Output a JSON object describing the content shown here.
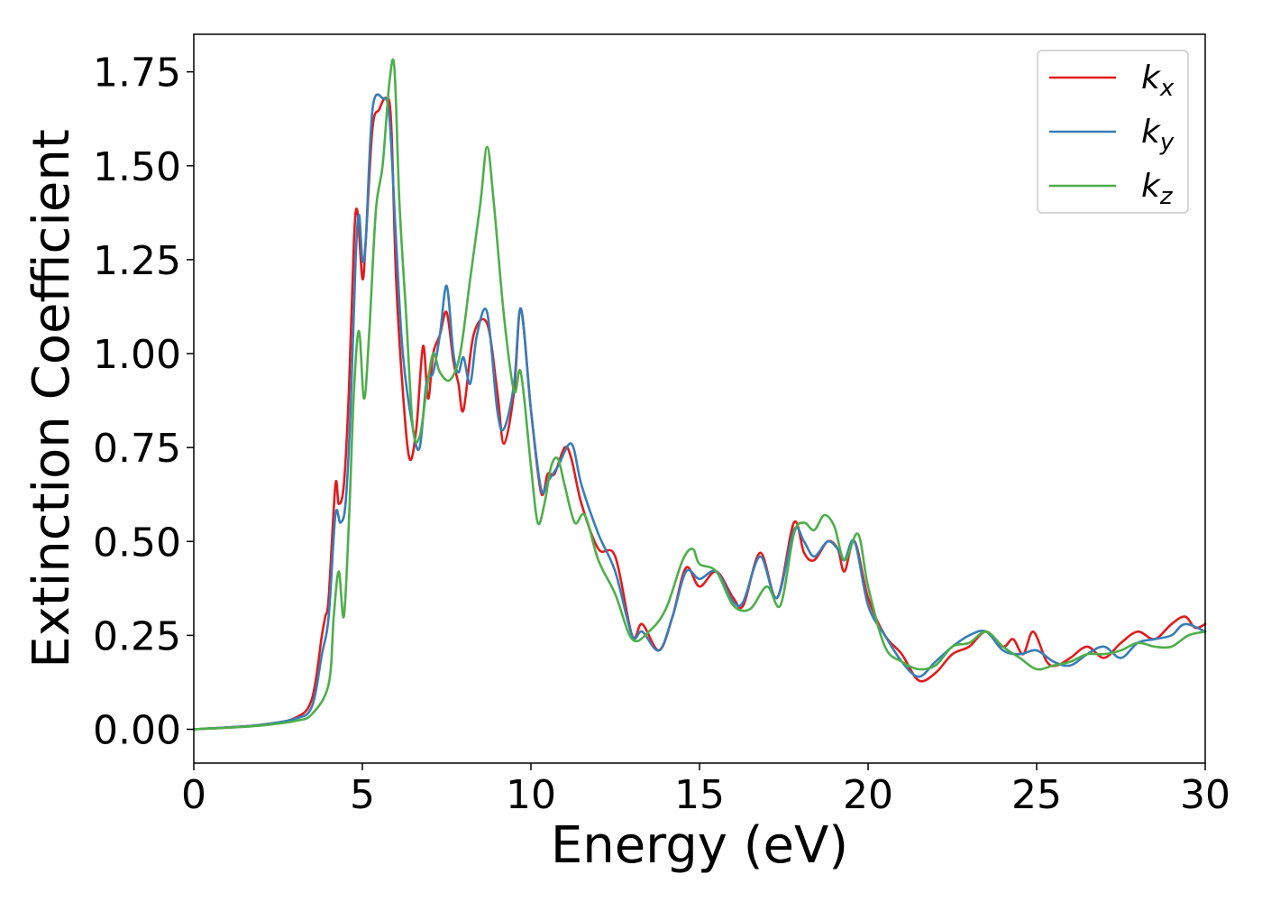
{
  "chart_data": {
    "type": "line",
    "title": "",
    "xlabel": "Energy (eV)",
    "ylabel": "Extinction Coefficient",
    "xlim": [
      0,
      30
    ],
    "ylim": [
      -0.09,
      1.85
    ],
    "xticks": [
      0,
      5,
      10,
      15,
      20,
      25,
      30
    ],
    "xtick_labels": [
      "0",
      "5",
      "10",
      "15",
      "20",
      "25",
      "30"
    ],
    "yticks": [
      0.0,
      0.25,
      0.5,
      0.75,
      1.0,
      1.25,
      1.5,
      1.75
    ],
    "ytick_labels": [
      "0.00",
      "0.25",
      "0.50",
      "0.75",
      "1.00",
      "1.25",
      "1.50",
      "1.75"
    ],
    "grid": false,
    "legend_position": "top-right",
    "series": [
      {
        "name": "k_x",
        "label_main": "k",
        "label_sub": "x",
        "color": "#e41a1c",
        "x": [
          0,
          1,
          2,
          3,
          3.5,
          3.8,
          3.9,
          4.0,
          4.2,
          4.3,
          4.45,
          4.6,
          4.75,
          4.85,
          5.0,
          5.1,
          5.3,
          5.5,
          5.7,
          5.85,
          6.0,
          6.2,
          6.4,
          6.6,
          6.8,
          6.95,
          7.1,
          7.3,
          7.5,
          7.7,
          7.85,
          8.0,
          8.3,
          8.7,
          9.0,
          9.2,
          9.5,
          9.7,
          10.0,
          10.3,
          10.5,
          10.7,
          11.0,
          11.2,
          11.5,
          12.0,
          12.5,
          13.0,
          13.3,
          13.8,
          14.2,
          14.6,
          15.0,
          15.5,
          16.0,
          16.3,
          16.8,
          17.3,
          17.8,
          18.1,
          18.4,
          18.8,
          19.1,
          19.3,
          19.6,
          20.0,
          20.5,
          21.0,
          21.5,
          22.0,
          22.5,
          23.0,
          23.5,
          24.0,
          24.3,
          24.6,
          24.9,
          25.3,
          25.6,
          26.0,
          26.5,
          27.0,
          27.5,
          28.0,
          28.5,
          29.0,
          29.4,
          29.7,
          30.0
        ],
        "y": [
          0.0,
          0.005,
          0.012,
          0.03,
          0.08,
          0.25,
          0.3,
          0.35,
          0.65,
          0.6,
          0.65,
          0.9,
          1.3,
          1.38,
          1.2,
          1.3,
          1.6,
          1.65,
          1.68,
          1.62,
          1.2,
          0.9,
          0.72,
          0.8,
          1.02,
          0.88,
          1.0,
          1.05,
          1.11,
          0.98,
          0.92,
          0.85,
          1.05,
          1.08,
          0.9,
          0.76,
          0.9,
          1.12,
          0.85,
          0.63,
          0.68,
          0.68,
          0.75,
          0.72,
          0.6,
          0.48,
          0.46,
          0.25,
          0.28,
          0.21,
          0.3,
          0.43,
          0.38,
          0.42,
          0.35,
          0.33,
          0.47,
          0.35,
          0.55,
          0.47,
          0.45,
          0.5,
          0.48,
          0.42,
          0.5,
          0.35,
          0.25,
          0.2,
          0.13,
          0.15,
          0.2,
          0.22,
          0.26,
          0.22,
          0.24,
          0.2,
          0.26,
          0.18,
          0.17,
          0.19,
          0.22,
          0.19,
          0.23,
          0.26,
          0.24,
          0.28,
          0.3,
          0.27,
          0.28
        ]
      },
      {
        "name": "k_y",
        "label_main": "k",
        "label_sub": "y",
        "color": "#377eb8",
        "x": [
          0,
          1,
          2,
          3,
          3.5,
          3.8,
          4.0,
          4.2,
          4.35,
          4.5,
          4.65,
          4.8,
          4.9,
          5.0,
          5.1,
          5.3,
          5.6,
          5.8,
          6.0,
          6.2,
          6.5,
          6.7,
          6.9,
          7.1,
          7.3,
          7.5,
          7.7,
          7.85,
          8.0,
          8.2,
          8.4,
          8.7,
          9.0,
          9.2,
          9.5,
          9.7,
          10.0,
          10.3,
          10.5,
          10.8,
          11.2,
          11.5,
          12.0,
          12.5,
          13.0,
          13.3,
          13.8,
          14.2,
          14.6,
          15.0,
          15.5,
          16.0,
          16.3,
          16.8,
          17.3,
          17.8,
          18.1,
          18.4,
          18.8,
          19.1,
          19.3,
          19.6,
          20.0,
          20.5,
          21.0,
          21.5,
          22.0,
          22.5,
          23.0,
          23.5,
          24.0,
          24.5,
          25.0,
          25.5,
          26.0,
          26.5,
          27.0,
          27.5,
          28.0,
          28.5,
          29.0,
          29.4,
          30.0
        ],
        "y": [
          0.0,
          0.005,
          0.012,
          0.028,
          0.06,
          0.2,
          0.3,
          0.57,
          0.55,
          0.6,
          0.85,
          1.25,
          1.37,
          1.25,
          1.3,
          1.65,
          1.68,
          1.63,
          1.3,
          1.0,
          0.8,
          0.75,
          0.92,
          0.95,
          1.05,
          1.18,
          1.0,
          0.95,
          0.99,
          0.92,
          1.05,
          1.11,
          0.85,
          0.8,
          0.92,
          1.12,
          0.85,
          0.64,
          0.66,
          0.7,
          0.76,
          0.65,
          0.52,
          0.42,
          0.25,
          0.26,
          0.21,
          0.3,
          0.42,
          0.4,
          0.42,
          0.34,
          0.34,
          0.46,
          0.35,
          0.53,
          0.5,
          0.46,
          0.5,
          0.48,
          0.45,
          0.5,
          0.33,
          0.25,
          0.18,
          0.14,
          0.18,
          0.22,
          0.25,
          0.26,
          0.21,
          0.2,
          0.21,
          0.18,
          0.17,
          0.2,
          0.22,
          0.19,
          0.23,
          0.24,
          0.25,
          0.28,
          0.26
        ]
      },
      {
        "name": "k_z",
        "label_main": "k",
        "label_sub": "z",
        "color": "#4daf4a",
        "x": [
          0,
          1,
          2,
          3,
          3.5,
          4.0,
          4.15,
          4.3,
          4.45,
          4.6,
          4.75,
          4.9,
          5.05,
          5.2,
          5.4,
          5.6,
          5.8,
          5.95,
          6.1,
          6.3,
          6.5,
          6.7,
          6.9,
          7.1,
          7.3,
          7.6,
          7.9,
          8.2,
          8.5,
          8.7,
          8.9,
          9.2,
          9.5,
          9.7,
          10.0,
          10.2,
          10.4,
          10.6,
          10.8,
          11.0,
          11.3,
          11.6,
          12.0,
          12.5,
          13.0,
          13.5,
          14.0,
          14.5,
          14.8,
          15.0,
          15.5,
          16.0,
          16.5,
          17.0,
          17.4,
          17.8,
          18.1,
          18.4,
          18.7,
          19.0,
          19.3,
          19.7,
          20.0,
          20.5,
          21.0,
          21.5,
          22.0,
          22.5,
          23.0,
          23.5,
          24.0,
          24.5,
          25.0,
          25.5,
          26.0,
          26.5,
          27.0,
          27.5,
          28.0,
          28.5,
          29.0,
          29.5,
          30.0
        ],
        "y": [
          0.0,
          0.004,
          0.01,
          0.022,
          0.04,
          0.12,
          0.3,
          0.42,
          0.3,
          0.55,
          0.9,
          1.06,
          0.88,
          1.05,
          1.38,
          1.5,
          1.72,
          1.76,
          1.4,
          1.1,
          0.8,
          0.78,
          0.9,
          1.0,
          0.95,
          0.93,
          1.0,
          1.2,
          1.4,
          1.55,
          1.4,
          1.1,
          0.9,
          0.95,
          0.7,
          0.55,
          0.6,
          0.7,
          0.72,
          0.65,
          0.55,
          0.57,
          0.45,
          0.36,
          0.24,
          0.26,
          0.32,
          0.45,
          0.48,
          0.44,
          0.42,
          0.33,
          0.32,
          0.38,
          0.33,
          0.52,
          0.55,
          0.53,
          0.57,
          0.54,
          0.45,
          0.52,
          0.38,
          0.22,
          0.18,
          0.16,
          0.17,
          0.22,
          0.23,
          0.26,
          0.22,
          0.19,
          0.16,
          0.17,
          0.18,
          0.2,
          0.2,
          0.21,
          0.23,
          0.22,
          0.22,
          0.25,
          0.26
        ]
      }
    ]
  }
}
